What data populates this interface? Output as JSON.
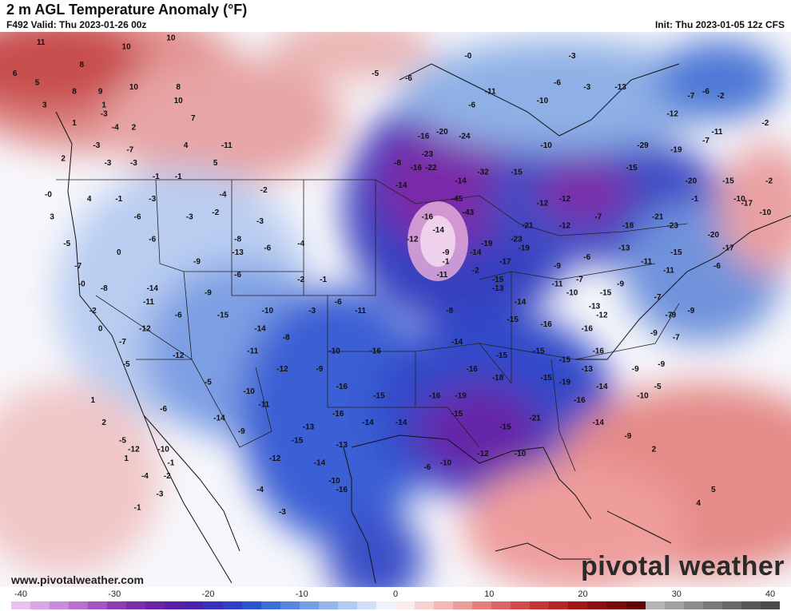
{
  "header": {
    "title": "2 m AGL Temperature Anomaly (°F)",
    "valid": "F492 Valid: Thu 2023-01-26 00z",
    "init": "Init: Thu 2023-01-05 12z CFS"
  },
  "footer": {
    "website": "www.pivotalweather.com",
    "brand": "pivotal weather"
  },
  "legend": {
    "ticks": [
      "-40",
      "-30",
      "-20",
      "-10",
      "0",
      "10",
      "20",
      "30",
      "40"
    ],
    "min": -40,
    "max": 40,
    "colors": [
      "#e9c3f0",
      "#d9a6e8",
      "#c98bdc",
      "#b86fcf",
      "#a355c1",
      "#8d3cb2",
      "#7b2da8",
      "#6a24a3",
      "#5a1fa6",
      "#4a22b0",
      "#3a2fbd",
      "#2f3fc6",
      "#2a55cf",
      "#3b6fd6",
      "#5787dc",
      "#759fe3",
      "#94b6ea",
      "#b3cbf0",
      "#d2dff6",
      "#edf2fb",
      "#fbeded",
      "#f7d2d2",
      "#f2b7b6",
      "#eb9b99",
      "#e47f7e",
      "#dc6464",
      "#d24b4c",
      "#c53537",
      "#b52426",
      "#a11718",
      "#8c0e10",
      "#76080a",
      "#600406",
      "#b4b4b4",
      "#a0a0a0",
      "#8c8c8c",
      "#7a7a7a",
      "#686868",
      "#585858",
      "#4a4a4a"
    ]
  },
  "map": {
    "labels": [
      {
        "t": "11",
        "lon": -129.5,
        "lat": 57.5
      },
      {
        "t": "10",
        "lon": -118,
        "lat": 57
      },
      {
        "t": "10",
        "lon": -112,
        "lat": 58
      },
      {
        "t": "6",
        "lon": -133,
        "lat": 54
      },
      {
        "t": "8",
        "lon": -124,
        "lat": 55
      },
      {
        "t": "5",
        "lon": -130,
        "lat": 53
      },
      {
        "t": "8",
        "lon": -125,
        "lat": 52
      },
      {
        "t": "9",
        "lon": -121.5,
        "lat": 52
      },
      {
        "t": "10",
        "lon": -117,
        "lat": 52.5
      },
      {
        "t": "8",
        "lon": -111,
        "lat": 52.5
      },
      {
        "t": "10",
        "lon": -111,
        "lat": 51
      },
      {
        "t": "3",
        "lon": -129,
        "lat": 50.5
      },
      {
        "t": "1",
        "lon": -121,
        "lat": 50.5
      },
      {
        "t": "-3",
        "lon": -121,
        "lat": 49.5
      },
      {
        "t": "7",
        "lon": -109,
        "lat": 49
      },
      {
        "t": "1",
        "lon": -125,
        "lat": 48.5
      },
      {
        "t": "-4",
        "lon": -119.5,
        "lat": 48
      },
      {
        "t": "2",
        "lon": -117,
        "lat": 48
      },
      {
        "t": "-3",
        "lon": -122,
        "lat": 46
      },
      {
        "t": "-7",
        "lon": -117.5,
        "lat": 45.5
      },
      {
        "t": "4",
        "lon": -110,
        "lat": 46
      },
      {
        "t": "-11",
        "lon": -104.5,
        "lat": 46
      },
      {
        "t": "2",
        "lon": -126.5,
        "lat": 44.5
      },
      {
        "t": "-3",
        "lon": -120.5,
        "lat": 44
      },
      {
        "t": "-3",
        "lon": -117,
        "lat": 44
      },
      {
        "t": "5",
        "lon": -106,
        "lat": 44
      },
      {
        "t": "-1",
        "lon": -114,
        "lat": 42.5
      },
      {
        "t": "-1",
        "lon": -111,
        "lat": 42.5
      },
      {
        "t": "-0",
        "lon": -128.5,
        "lat": 40.5
      },
      {
        "t": "4",
        "lon": -123,
        "lat": 40
      },
      {
        "t": "-1",
        "lon": -119,
        "lat": 40
      },
      {
        "t": "-3",
        "lon": -114.5,
        "lat": 40
      },
      {
        "t": "-4",
        "lon": -105,
        "lat": 40.5
      },
      {
        "t": "-2",
        "lon": -99.5,
        "lat": 41
      },
      {
        "t": "3",
        "lon": -128,
        "lat": 38
      },
      {
        "t": "-6",
        "lon": -116.5,
        "lat": 38
      },
      {
        "t": "-3",
        "lon": -109.5,
        "lat": 38
      },
      {
        "t": "-2",
        "lon": -106,
        "lat": 38.5
      },
      {
        "t": "-3",
        "lon": -100,
        "lat": 37.5
      },
      {
        "t": "-5",
        "lon": -126,
        "lat": 35
      },
      {
        "t": "0",
        "lon": -119,
        "lat": 34
      },
      {
        "t": "-6",
        "lon": -114.5,
        "lat": 35.5
      },
      {
        "t": "-8",
        "lon": -103,
        "lat": 35.5
      },
      {
        "t": "-4",
        "lon": -94.5,
        "lat": 35
      },
      {
        "t": "-7",
        "lon": -124.5,
        "lat": 32.5
      },
      {
        "t": "-9",
        "lon": -108.5,
        "lat": 33
      },
      {
        "t": "-13",
        "lon": -103,
        "lat": 34
      },
      {
        "t": "-6",
        "lon": -99,
        "lat": 34.5
      },
      {
        "t": "-6",
        "lon": -103,
        "lat": 31.5
      },
      {
        "t": "-2",
        "lon": -94.5,
        "lat": 31
      },
      {
        "t": "-1",
        "lon": -91.5,
        "lat": 31
      },
      {
        "t": "-0",
        "lon": -124,
        "lat": 30.5
      },
      {
        "t": "-8",
        "lon": -121,
        "lat": 30
      },
      {
        "t": "-14",
        "lon": -114.5,
        "lat": 30
      },
      {
        "t": "-9",
        "lon": -107,
        "lat": 29.5
      },
      {
        "t": "-2",
        "lon": -122.5,
        "lat": 27.5
      },
      {
        "t": "-11",
        "lon": -115,
        "lat": 28.5
      },
      {
        "t": "-6",
        "lon": -111,
        "lat": 27
      },
      {
        "t": "-15",
        "lon": -105,
        "lat": 27
      },
      {
        "t": "-10",
        "lon": -99,
        "lat": 27.5
      },
      {
        "t": "-3",
        "lon": -93,
        "lat": 27.5
      },
      {
        "t": "-6",
        "lon": -89.5,
        "lat": 28.5
      },
      {
        "t": "0",
        "lon": -121.5,
        "lat": 25.5
      },
      {
        "t": "-12",
        "lon": -115.5,
        "lat": 25.5
      },
      {
        "t": "-7",
        "lon": -118.5,
        "lat": 24
      },
      {
        "t": "-14",
        "lon": -100,
        "lat": 25.5
      },
      {
        "t": "-8",
        "lon": -96.5,
        "lat": 24.5
      },
      {
        "t": "-11",
        "lon": -86.5,
        "lat": 27.5
      },
      {
        "t": "-12",
        "lon": -111,
        "lat": 22.5
      },
      {
        "t": "-11",
        "lon": -101,
        "lat": 23
      },
      {
        "t": "-10",
        "lon": -90,
        "lat": 23
      },
      {
        "t": "-16",
        "lon": -84.5,
        "lat": 23
      },
      {
        "t": "-5",
        "lon": -118,
        "lat": 21.5
      },
      {
        "t": "-12",
        "lon": -97,
        "lat": 21
      },
      {
        "t": "-9",
        "lon": -92,
        "lat": 21
      },
      {
        "t": "-5",
        "lon": -107,
        "lat": 19.5
      },
      {
        "t": "-10",
        "lon": -101.5,
        "lat": 18.5
      },
      {
        "t": "-16",
        "lon": -89,
        "lat": 19
      },
      {
        "t": "-15",
        "lon": -84,
        "lat": 18
      },
      {
        "t": "-6",
        "lon": -113,
        "lat": 16.5
      },
      {
        "t": "-14",
        "lon": -105.5,
        "lat": 15.5
      },
      {
        "t": "-11",
        "lon": -99.5,
        "lat": 17
      },
      {
        "t": "-9",
        "lon": -102.5,
        "lat": 14
      },
      {
        "t": "-13",
        "lon": -93.5,
        "lat": 14.5
      },
      {
        "t": "-16",
        "lon": -89.5,
        "lat": 16
      },
      {
        "t": "-14",
        "lon": -85.5,
        "lat": 15
      },
      {
        "t": "-15",
        "lon": -95,
        "lat": 13
      },
      {
        "t": "-13",
        "lon": -89,
        "lat": 12.5
      },
      {
        "t": "-12",
        "lon": -98,
        "lat": 11
      },
      {
        "t": "-14",
        "lon": -92,
        "lat": 10.5
      },
      {
        "t": "-10",
        "lon": -90,
        "lat": 8.5
      },
      {
        "t": "-4",
        "lon": -100,
        "lat": 7.5
      },
      {
        "t": "-3",
        "lon": -97,
        "lat": 5
      },
      {
        "t": "-16",
        "lon": -89,
        "lat": 7.5
      },
      {
        "t": "-16",
        "lon": -78,
        "lat": 47
      },
      {
        "t": "-20",
        "lon": -75.5,
        "lat": 47.5
      },
      {
        "t": "-24",
        "lon": -72.5,
        "lat": 47
      },
      {
        "t": "-11",
        "lon": -69,
        "lat": 52
      },
      {
        "t": "-10",
        "lon": -62,
        "lat": 51
      },
      {
        "t": "-6",
        "lon": -80,
        "lat": 53.5
      },
      {
        "t": "-0",
        "lon": -72,
        "lat": 56
      },
      {
        "t": "-3",
        "lon": -58,
        "lat": 56
      },
      {
        "t": "-10",
        "lon": -61.5,
        "lat": 46
      },
      {
        "t": "-23",
        "lon": -77.5,
        "lat": 45
      },
      {
        "t": "-22",
        "lon": -77,
        "lat": 43.5
      },
      {
        "t": "-32",
        "lon": -70,
        "lat": 43
      },
      {
        "t": "-14",
        "lon": -73,
        "lat": 42
      },
      {
        "t": "-45",
        "lon": -73.5,
        "lat": 40
      },
      {
        "t": "-43",
        "lon": -72,
        "lat": 38.5
      },
      {
        "t": "-15",
        "lon": -65.5,
        "lat": 43
      },
      {
        "t": "-29",
        "lon": -48.5,
        "lat": 46
      },
      {
        "t": "-19",
        "lon": -44,
        "lat": 45.5
      },
      {
        "t": "-7",
        "lon": -40,
        "lat": 46.5
      },
      {
        "t": "-8",
        "lon": -81.5,
        "lat": 44
      },
      {
        "t": "-14",
        "lon": -81,
        "lat": 41.5
      },
      {
        "t": "-16",
        "lon": -77.5,
        "lat": 38
      },
      {
        "t": "-12",
        "lon": -62,
        "lat": 39.5
      },
      {
        "t": "-21",
        "lon": -64,
        "lat": 37
      },
      {
        "t": "-23",
        "lon": -65.5,
        "lat": 35.5
      },
      {
        "t": "-19",
        "lon": -69.5,
        "lat": 35
      },
      {
        "t": "-12",
        "lon": -59,
        "lat": 37
      },
      {
        "t": "-7",
        "lon": -54.5,
        "lat": 38
      },
      {
        "t": "-18",
        "lon": -50.5,
        "lat": 37
      },
      {
        "t": "-21",
        "lon": -46.5,
        "lat": 38
      },
      {
        "t": "-23",
        "lon": -44.5,
        "lat": 37
      },
      {
        "t": "-20",
        "lon": -42,
        "lat": 42
      },
      {
        "t": "-15",
        "lon": -37,
        "lat": 42
      },
      {
        "t": "-17",
        "lon": -34.5,
        "lat": 39.5
      },
      {
        "t": "-10",
        "lon": -32,
        "lat": 38.5
      },
      {
        "t": "-8",
        "lon": -28,
        "lat": 40
      },
      {
        "t": "-20",
        "lon": -39,
        "lat": 36
      },
      {
        "t": "-17",
        "lon": -37,
        "lat": 34.5
      },
      {
        "t": "-14",
        "lon": -76,
        "lat": 36.5
      },
      {
        "t": "-12",
        "lon": -79.5,
        "lat": 35.5
      },
      {
        "t": "-9",
        "lon": -75,
        "lat": 34
      },
      {
        "t": "-19",
        "lon": -64.5,
        "lat": 34.5
      },
      {
        "t": "-6",
        "lon": -56,
        "lat": 33.5
      },
      {
        "t": "-13",
        "lon": -51,
        "lat": 34.5
      },
      {
        "t": "-15",
        "lon": -44,
        "lat": 34
      },
      {
        "t": "-11",
        "lon": -48,
        "lat": 33
      },
      {
        "t": "-14",
        "lon": -71,
        "lat": 34
      },
      {
        "t": "-17",
        "lon": -67,
        "lat": 33
      },
      {
        "t": "-11",
        "lon": -75.5,
        "lat": 31.5
      },
      {
        "t": "-9",
        "lon": -60,
        "lat": 32.5
      },
      {
        "t": "-7",
        "lon": -57,
        "lat": 31
      },
      {
        "t": "-15",
        "lon": -68,
        "lat": 31
      },
      {
        "t": "-13",
        "lon": -68,
        "lat": 30
      },
      {
        "t": "-11",
        "lon": -60,
        "lat": 30.5
      },
      {
        "t": "-10",
        "lon": -58,
        "lat": 29.5
      },
      {
        "t": "-15",
        "lon": -53.5,
        "lat": 29.5
      },
      {
        "t": "-14",
        "lon": -65,
        "lat": 28.5
      },
      {
        "t": "-13",
        "lon": -55,
        "lat": 28
      },
      {
        "t": "-9",
        "lon": -51.5,
        "lat": 30.5
      },
      {
        "t": "-8",
        "lon": -74.5,
        "lat": 27.5
      },
      {
        "t": "-15",
        "lon": -66,
        "lat": 26.5
      },
      {
        "t": "-16",
        "lon": -61.5,
        "lat": 26
      },
      {
        "t": "-16",
        "lon": -56,
        "lat": 25.5
      },
      {
        "t": "-12",
        "lon": -54,
        "lat": 27
      },
      {
        "t": "-9",
        "lon": -47,
        "lat": 25
      },
      {
        "t": "-7",
        "lon": -44,
        "lat": 24.5
      },
      {
        "t": "-16",
        "lon": -54.5,
        "lat": 23
      },
      {
        "t": "-14",
        "lon": -73.5,
        "lat": 24
      },
      {
        "t": "-15",
        "lon": -67.5,
        "lat": 22.5
      },
      {
        "t": "-15",
        "lon": -62.5,
        "lat": 23
      },
      {
        "t": "-15",
        "lon": -59,
        "lat": 22
      },
      {
        "t": "-16",
        "lon": -71.5,
        "lat": 21
      },
      {
        "t": "-18",
        "lon": -68,
        "lat": 20
      },
      {
        "t": "-15",
        "lon": -61.5,
        "lat": 20
      },
      {
        "t": "-19",
        "lon": -59,
        "lat": 19.5
      },
      {
        "t": "-13",
        "lon": -56,
        "lat": 21
      },
      {
        "t": "-14",
        "lon": -54,
        "lat": 19
      },
      {
        "t": "-9",
        "lon": -49.5,
        "lat": 21
      },
      {
        "t": "-10",
        "lon": -48.5,
        "lat": 18
      },
      {
        "t": "-5",
        "lon": -46.5,
        "lat": 19
      },
      {
        "t": "-16",
        "lon": -76.5,
        "lat": 18
      },
      {
        "t": "-19",
        "lon": -73,
        "lat": 18
      },
      {
        "t": "-15",
        "lon": -73.5,
        "lat": 16
      },
      {
        "t": "-16",
        "lon": -57,
        "lat": 17.5
      },
      {
        "t": "-21",
        "lon": -63,
        "lat": 15.5
      },
      {
        "t": "-14",
        "lon": -54.5,
        "lat": 15
      },
      {
        "t": "-9",
        "lon": -50.5,
        "lat": 13.5
      },
      {
        "t": "-14",
        "lon": -81,
        "lat": 15
      },
      {
        "t": "-15",
        "lon": -67,
        "lat": 14.5
      },
      {
        "t": "-12",
        "lon": -70,
        "lat": 11.5
      },
      {
        "t": "-10",
        "lon": -65,
        "lat": 11.5
      },
      {
        "t": "-6",
        "lon": -77.5,
        "lat": 10
      },
      {
        "t": "-10",
        "lon": -75,
        "lat": 10.5
      },
      {
        "t": "-7",
        "lon": -45,
        "lat": 27
      },
      {
        "t": "-9",
        "lon": -46,
        "lat": 21.5
      },
      {
        "t": "-7",
        "lon": -46.5,
        "lat": 29
      },
      {
        "t": "-11",
        "lon": -45,
        "lat": 32
      },
      {
        "t": "-9",
        "lon": -42,
        "lat": 27.5
      },
      {
        "t": "-6",
        "lon": -38.5,
        "lat": 32.5
      },
      {
        "t": "-9",
        "lon": -44.5,
        "lat": 27
      },
      {
        "t": "-1",
        "lon": -75,
        "lat": 33
      },
      {
        "t": "-2",
        "lon": -71,
        "lat": 32
      },
      {
        "t": "1",
        "lon": -122.5,
        "lat": 17.5
      },
      {
        "t": "2",
        "lon": -121,
        "lat": 15
      },
      {
        "t": "-5",
        "lon": -118.5,
        "lat": 13
      },
      {
        "t": "1",
        "lon": -118,
        "lat": 11
      },
      {
        "t": "-4",
        "lon": -115.5,
        "lat": 9
      },
      {
        "t": "-2",
        "lon": -112.5,
        "lat": 9
      },
      {
        "t": "-1",
        "lon": -112,
        "lat": 10.5
      },
      {
        "t": "-3",
        "lon": -113.5,
        "lat": 7
      },
      {
        "t": "-12",
        "lon": -117,
        "lat": 12
      },
      {
        "t": "-10",
        "lon": -113,
        "lat": 12
      },
      {
        "t": "-1",
        "lon": -116.5,
        "lat": 5.5
      },
      {
        "t": "2",
        "lon": -47,
        "lat": 12
      },
      {
        "t": "4",
        "lon": -41,
        "lat": 6
      },
      {
        "t": "5",
        "lon": -39,
        "lat": 7.5
      },
      {
        "t": "-7",
        "lon": -42,
        "lat": 51.5
      },
      {
        "t": "-6",
        "lon": -40,
        "lat": 52
      },
      {
        "t": "-12",
        "lon": -44.5,
        "lat": 49.5
      },
      {
        "t": "-11",
        "lon": -38.5,
        "lat": 47.5
      },
      {
        "t": "-13",
        "lon": -51.5,
        "lat": 52.5
      },
      {
        "t": "-6",
        "lon": -71.5,
        "lat": 50.5
      },
      {
        "t": "-6",
        "lon": -60,
        "lat": 53
      },
      {
        "t": "-5",
        "lon": -84.5,
        "lat": 54
      },
      {
        "t": "-3",
        "lon": -56,
        "lat": 52.5
      },
      {
        "t": "-2",
        "lon": -32,
        "lat": 48.5
      },
      {
        "t": "-2",
        "lon": -31.5,
        "lat": 42
      },
      {
        "t": "-2",
        "lon": -38,
        "lat": 51.5
      },
      {
        "t": "-1",
        "lon": -41.5,
        "lat": 40
      },
      {
        "t": "-10",
        "lon": -35.5,
        "lat": 40
      },
      {
        "t": "-15",
        "lon": -50,
        "lat": 43.5
      },
      {
        "t": "-16",
        "lon": -79,
        "lat": 43.5
      },
      {
        "t": "-12",
        "lon": -59,
        "lat": 40
      }
    ]
  }
}
